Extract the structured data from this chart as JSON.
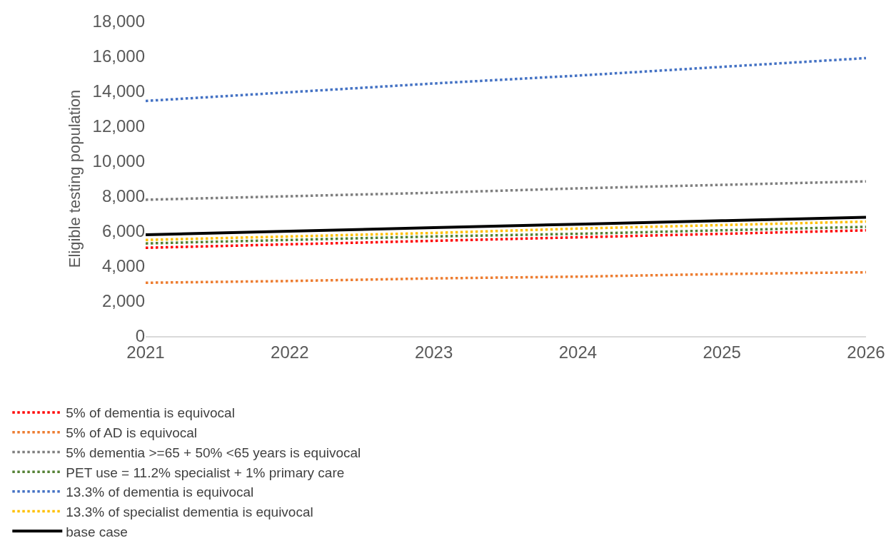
{
  "chart_data": {
    "type": "line",
    "ylabel": "Eligible testing population",
    "x": [
      2021,
      2022,
      2023,
      2024,
      2025,
      2026
    ],
    "xlim": [
      2021,
      2026
    ],
    "xticks": [
      2021,
      2022,
      2023,
      2024,
      2025,
      2026
    ],
    "ylim": [
      0,
      18000
    ],
    "yticks": [
      {
        "value": 0,
        "label": "0"
      },
      {
        "value": 2000,
        "label": "2,000"
      },
      {
        "value": 4000,
        "label": "4,000"
      },
      {
        "value": 6000,
        "label": "6,000"
      },
      {
        "value": 8000,
        "label": "8,000"
      },
      {
        "value": 10000,
        "label": "10,000"
      },
      {
        "value": 12000,
        "label": "12,000"
      },
      {
        "value": 14000,
        "label": "14,000"
      },
      {
        "value": 16000,
        "label": "16,000"
      },
      {
        "value": 18000,
        "label": "18,000"
      }
    ],
    "grid": false,
    "legend": "bottom",
    "series": [
      {
        "name": "5% of dementia is equivocal",
        "color": "#ff0000",
        "line_style": "dotted",
        "values": [
          5050,
          5250,
          5450,
          5650,
          5850,
          6050
        ]
      },
      {
        "name": "5% of AD is equivocal",
        "color": "#ed7d31",
        "line_style": "dotted",
        "values": [
          3050,
          3150,
          3300,
          3400,
          3550,
          3650
        ]
      },
      {
        "name": "5% dementia >=65 + 50% <65 years is equivocal",
        "color": "#7f7f7f",
        "line_style": "dotted",
        "values": [
          7800,
          8000,
          8200,
          8450,
          8650,
          8850
        ]
      },
      {
        "name": "PET use = 11.2% specialist + 1% primary care",
        "color": "#548235",
        "line_style": "dotted",
        "values": [
          5300,
          5500,
          5700,
          5850,
          6050,
          6250
        ]
      },
      {
        "name": "13.3% of dementia is equivocal",
        "color": "#4472c4",
        "line_style": "dotted",
        "values": [
          13450,
          13950,
          14450,
          14900,
          15400,
          15900
        ]
      },
      {
        "name": "13.3% of specialist dementia is equivocal",
        "color": "#ffc000",
        "line_style": "dotted",
        "values": [
          5500,
          5700,
          5900,
          6150,
          6350,
          6550
        ]
      },
      {
        "name": "base case",
        "color": "#000000",
        "line_style": "solid",
        "values": [
          5800,
          6000,
          6200,
          6400,
          6600,
          6800
        ]
      }
    ]
  }
}
